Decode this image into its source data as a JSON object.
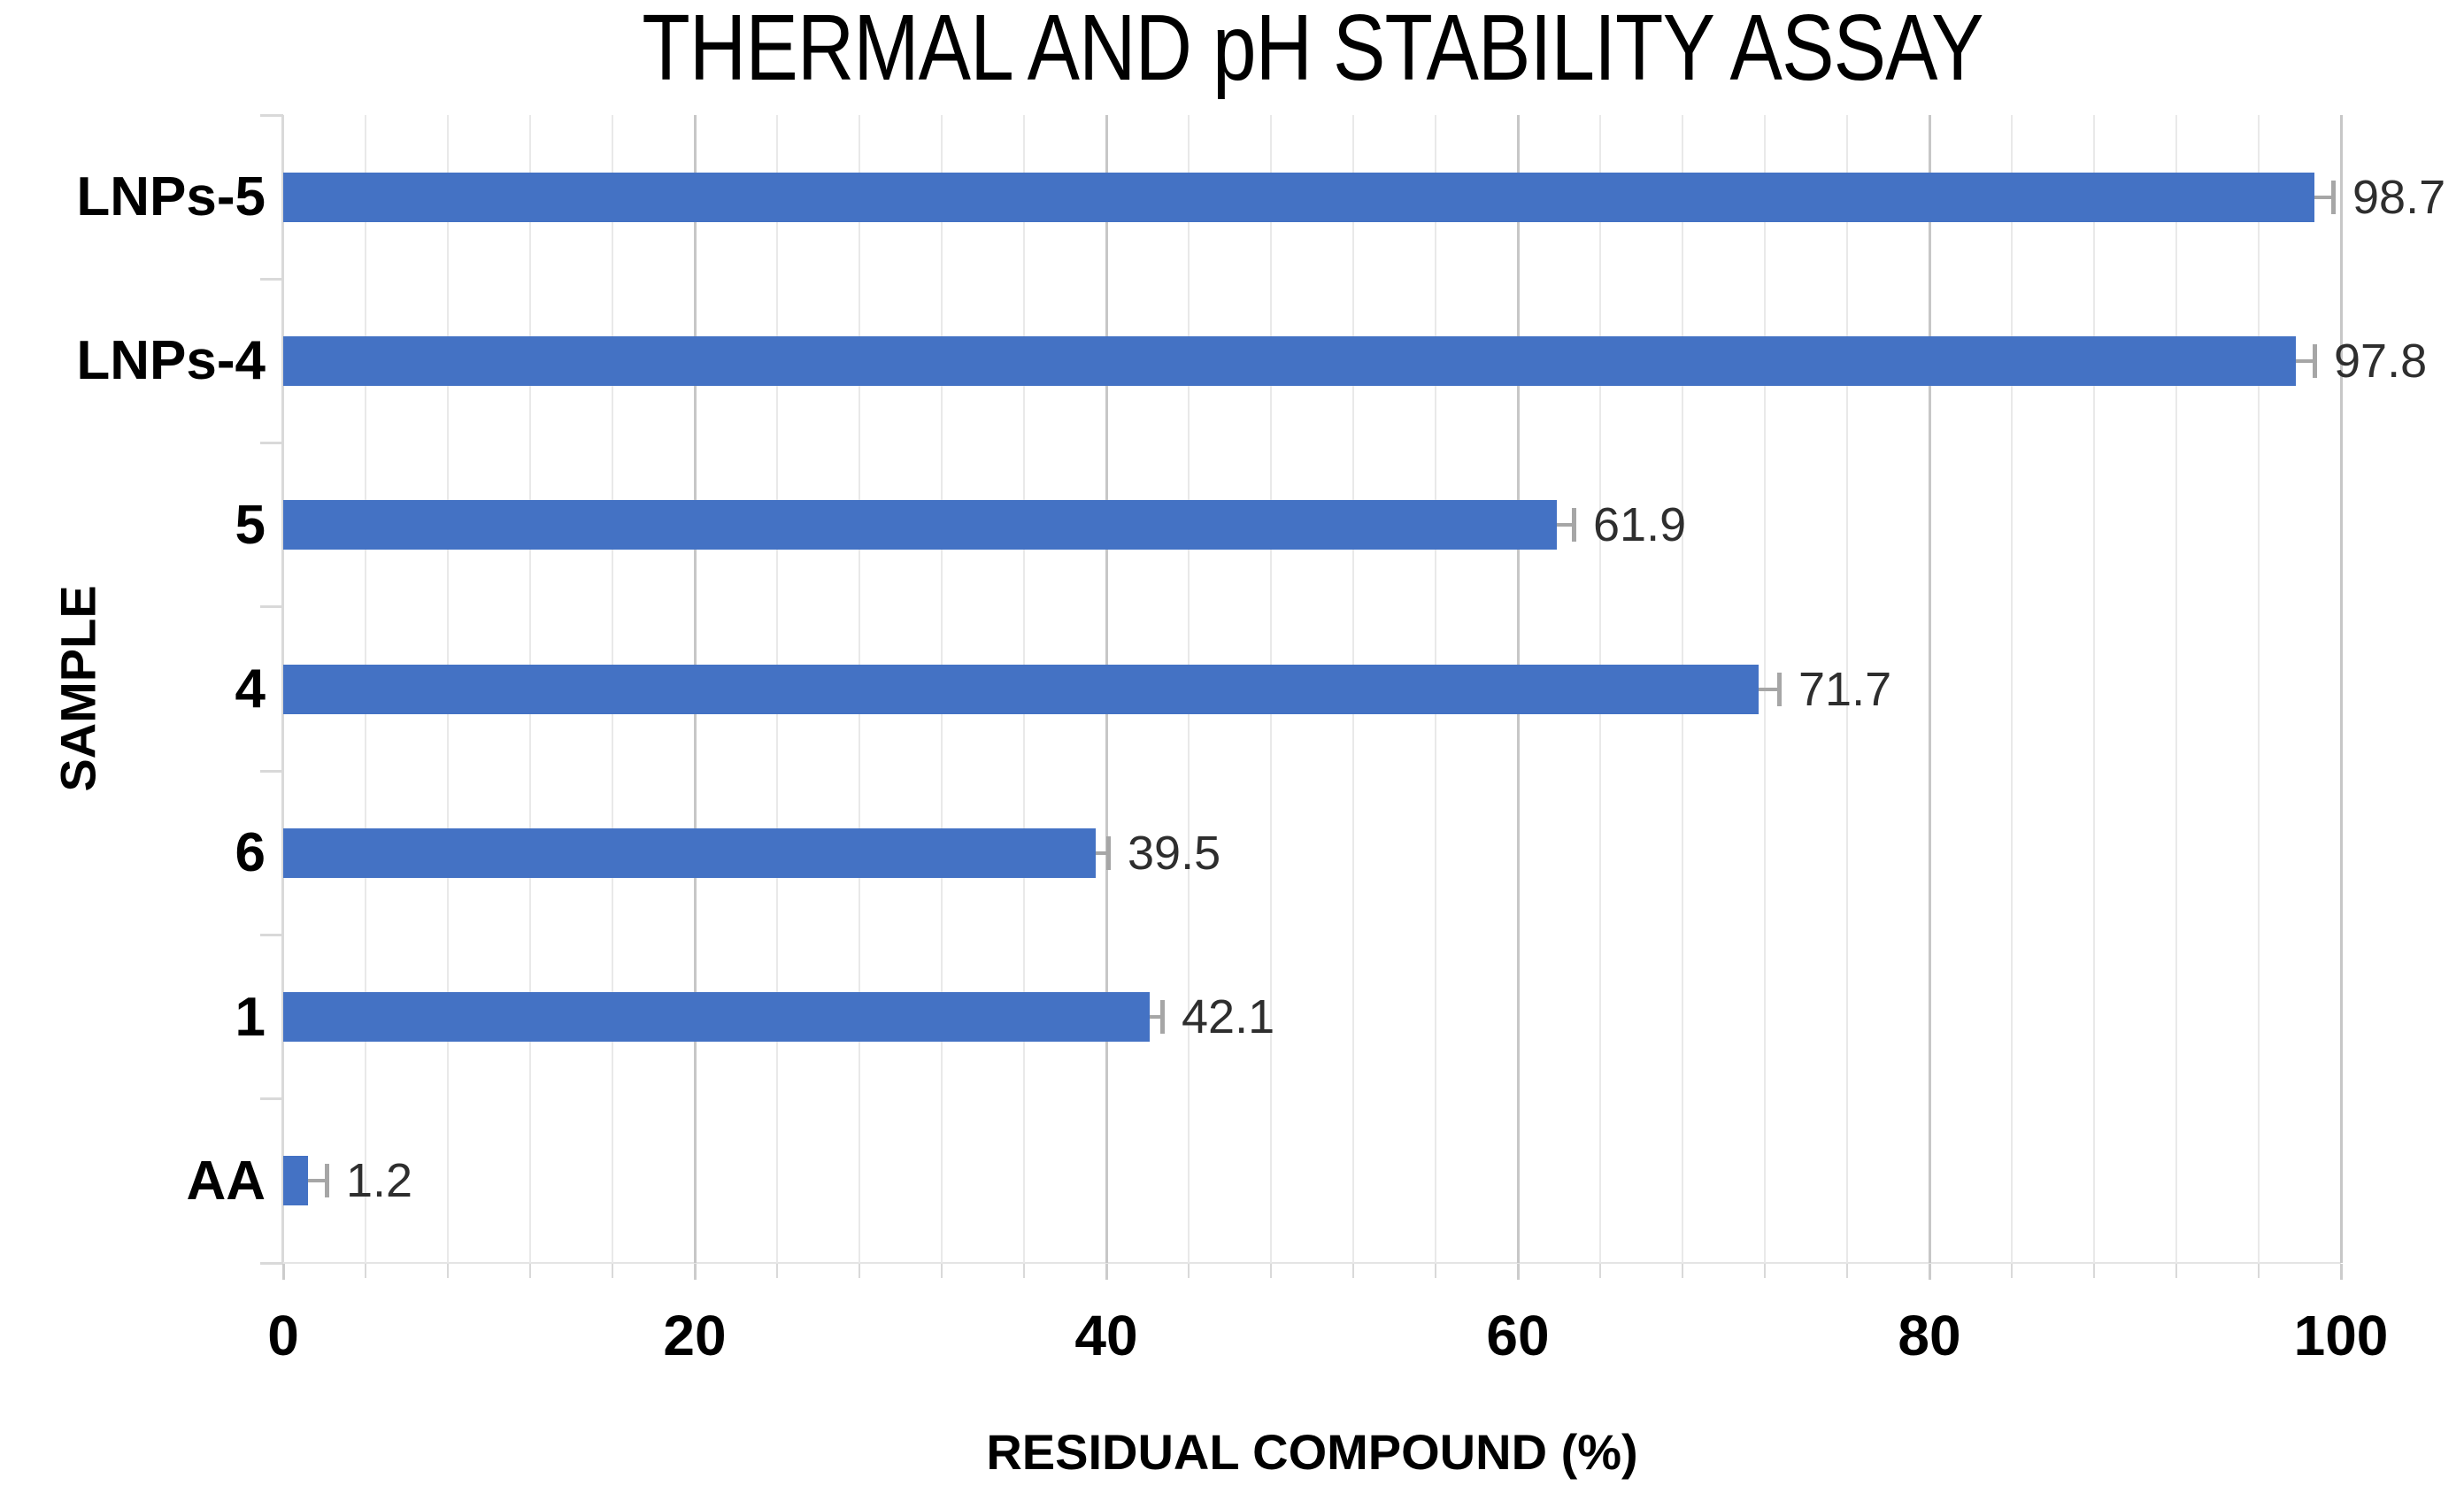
{
  "chart_data": {
    "type": "bar",
    "orientation": "horizontal",
    "title": "THERMAL AND pH STABILITY ASSAY",
    "xlabel": "RESIDUAL COMPOUND (%)",
    "ylabel": "SAMPLE",
    "categories": [
      "LNPs-5",
      "LNPs-4",
      "5",
      "4",
      "6",
      "1",
      "AA"
    ],
    "values": [
      98.7,
      97.8,
      61.9,
      71.7,
      39.5,
      42.1,
      1.2
    ],
    "value_labels": [
      "98.7",
      "97.8",
      "61.9",
      "71.7",
      "39.5",
      "42.1",
      "1.2"
    ],
    "errors": [
      0.9,
      0.9,
      0.8,
      1.0,
      0.6,
      0.6,
      0.9
    ],
    "error_direction": "plus",
    "xlim": [
      0,
      100
    ],
    "x_ticks": [
      0,
      20,
      40,
      60,
      80,
      100
    ],
    "x_major_unit": 20,
    "x_minor_unit": 4,
    "grid": "vertical minor and major gridlines on, no legend",
    "legend": null,
    "colors": {
      "bar": "#4472C4",
      "error_bar": "#A6A6A6",
      "grid_minor": "#E9E9E9",
      "grid_major": "#C7C7C7",
      "axis_line": "#D9D9D9",
      "value_label_text": "#2E2E2E",
      "text": "#000000",
      "background": "#FFFFFF"
    }
  }
}
